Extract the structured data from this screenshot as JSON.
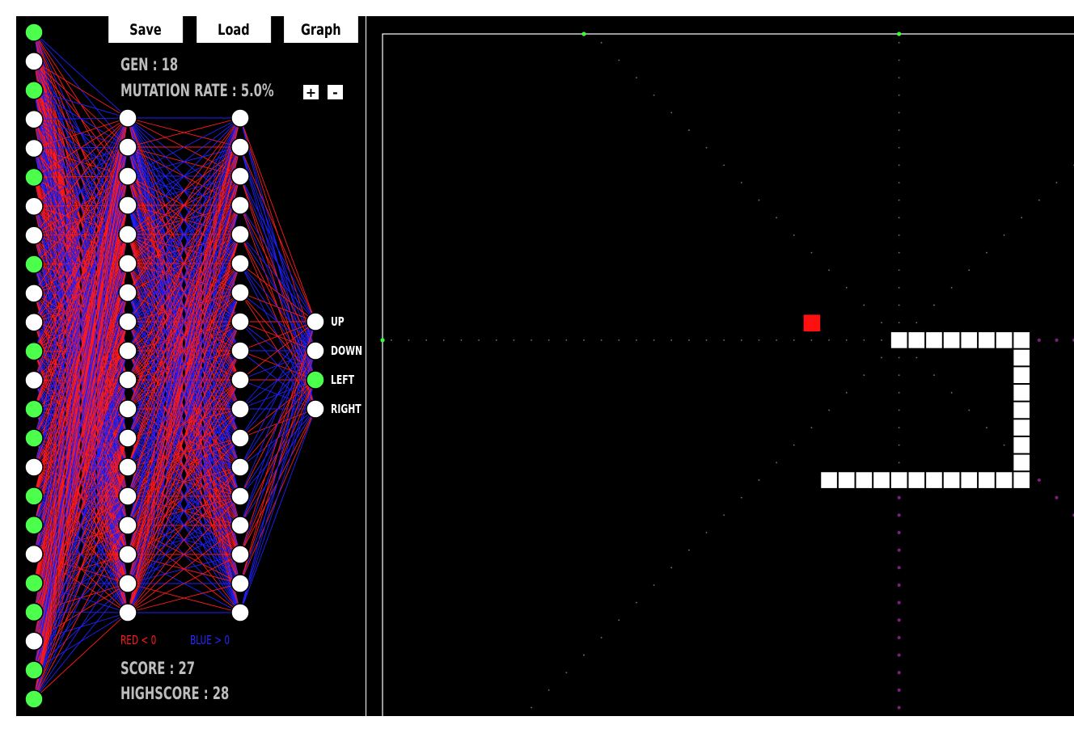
{
  "toolbar": {
    "save_label": "Save",
    "load_label": "Load",
    "graph_label": "Graph"
  },
  "stats": {
    "generation": "GEN : 18",
    "mutation_rate": "MUTATION RATE : 5.0%",
    "score": "SCORE : 27",
    "highscore": "HIGHSCORE : 28"
  },
  "mutation_controls": {
    "increase_label": "+",
    "decrease_label": "-"
  },
  "legend": {
    "negative": "RED < 0",
    "positive": "BLUE > 0"
  },
  "network": {
    "input_count": 24,
    "hidden_layer_sizes": [
      18,
      18
    ],
    "output_labels": [
      "UP",
      "DOWN",
      "LEFT",
      "RIGHT"
    ],
    "active_inputs": [
      0,
      2,
      5,
      8,
      11,
      13,
      14,
      16,
      17,
      19,
      20,
      22,
      23
    ],
    "active_output": 2,
    "colors": {
      "negative_weight": "#ff1a1a",
      "positive_weight": "#2020ff",
      "active_node": "#4cff4c",
      "inactive_node": "#ffffff"
    }
  },
  "game": {
    "grid_size": 40,
    "food_cell": [
      24,
      16
    ],
    "snake_cells": [
      [
        29,
        17
      ],
      [
        30,
        17
      ],
      [
        31,
        17
      ],
      [
        32,
        17
      ],
      [
        33,
        17
      ],
      [
        34,
        17
      ],
      [
        35,
        17
      ],
      [
        36,
        17
      ],
      [
        36,
        18
      ],
      [
        36,
        19
      ],
      [
        36,
        20
      ],
      [
        36,
        21
      ],
      [
        36,
        22
      ],
      [
        36,
        23
      ],
      [
        36,
        24
      ],
      [
        36,
        25
      ],
      [
        35,
        25
      ],
      [
        34,
        25
      ],
      [
        33,
        25
      ],
      [
        32,
        25
      ],
      [
        31,
        25
      ],
      [
        30,
        25
      ],
      [
        29,
        25
      ],
      [
        28,
        25
      ],
      [
        27,
        25
      ],
      [
        26,
        25
      ],
      [
        25,
        25
      ]
    ],
    "colors": {
      "snake": "#ffffff",
      "food": "#ff1010",
      "food_vision_ray": "#ffff33",
      "body_vision_ray": "#7a1f7a",
      "wall_vision_ray": "#777777",
      "wall_hit": "#33ff33",
      "board_border": "#ffffff"
    }
  }
}
